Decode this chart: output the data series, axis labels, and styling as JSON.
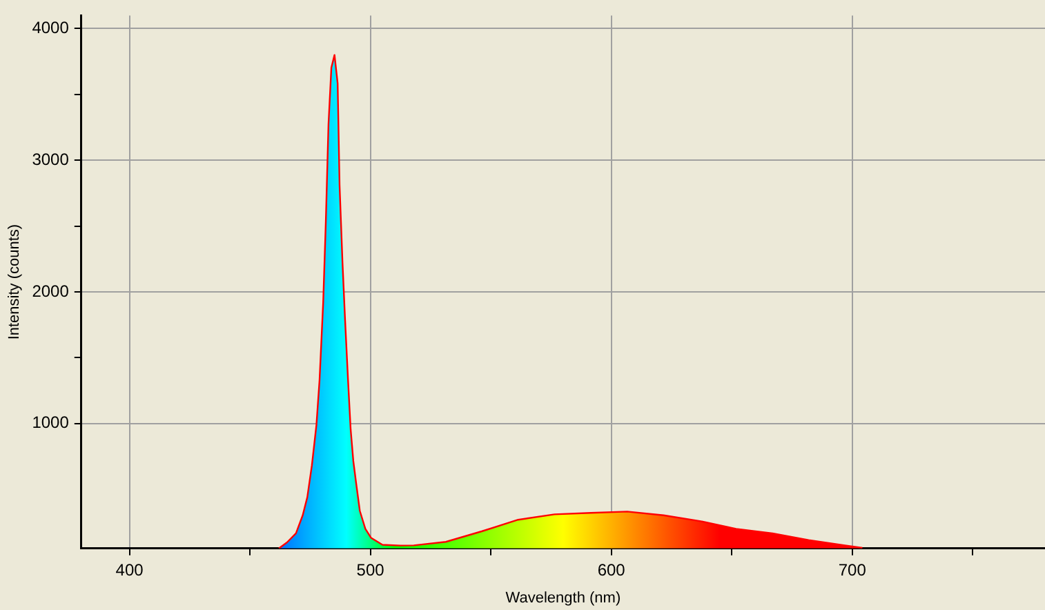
{
  "chart_data": {
    "type": "area",
    "xlabel": "Wavelength (nm)",
    "ylabel": "Intensity (counts)",
    "x": [
      462,
      465.4,
      469.1,
      471.9,
      473.8,
      475.7,
      477.6,
      478.9,
      480.4,
      481.5,
      482.6,
      483.8,
      485.1,
      486.4,
      487.2,
      488.4,
      489.5,
      490.7,
      491.8,
      492.9,
      494.1,
      495.6,
      497.9,
      500.3,
      505,
      512.5,
      518,
      531.3,
      546.2,
      561.3,
      576.4,
      591.5,
      606.6,
      621.7,
      636.7,
      651.8,
      666.9,
      681.9,
      697,
      704.2
    ],
    "series": [
      {
        "color": "#ff0000",
        "values": [
          50,
          96,
          165,
          302,
          439,
          680,
          990,
          1333,
          1918,
          2536,
          3274,
          3704,
          3800,
          3584,
          2810,
          2227,
          1780,
          1333,
          955,
          715,
          543,
          336,
          199,
          130,
          78,
          72,
          73,
          100,
          180,
          268,
          309,
          320,
          330,
          302,
          258,
          199,
          165,
          113,
          73,
          55
        ]
      }
    ],
    "xlim": [
      380,
      780
    ],
    "xticks": [
      400,
      {
        "value": 450,
        "label": null
      },
      500,
      {
        "value": 550,
        "label": null
      },
      600,
      {
        "value": 650,
        "label": null
      },
      700,
      {
        "value": 750,
        "label": null
      }
    ],
    "ylim": [
      50,
      4100
    ],
    "yticks": [
      1000,
      {
        "value": 1500,
        "label": null
      },
      2000,
      {
        "value": 2500,
        "label": null
      },
      3000,
      {
        "value": 3500,
        "label": null
      },
      4000
    ],
    "grid": true,
    "legend": false,
    "marker": "none",
    "line_style": "solid"
  }
}
